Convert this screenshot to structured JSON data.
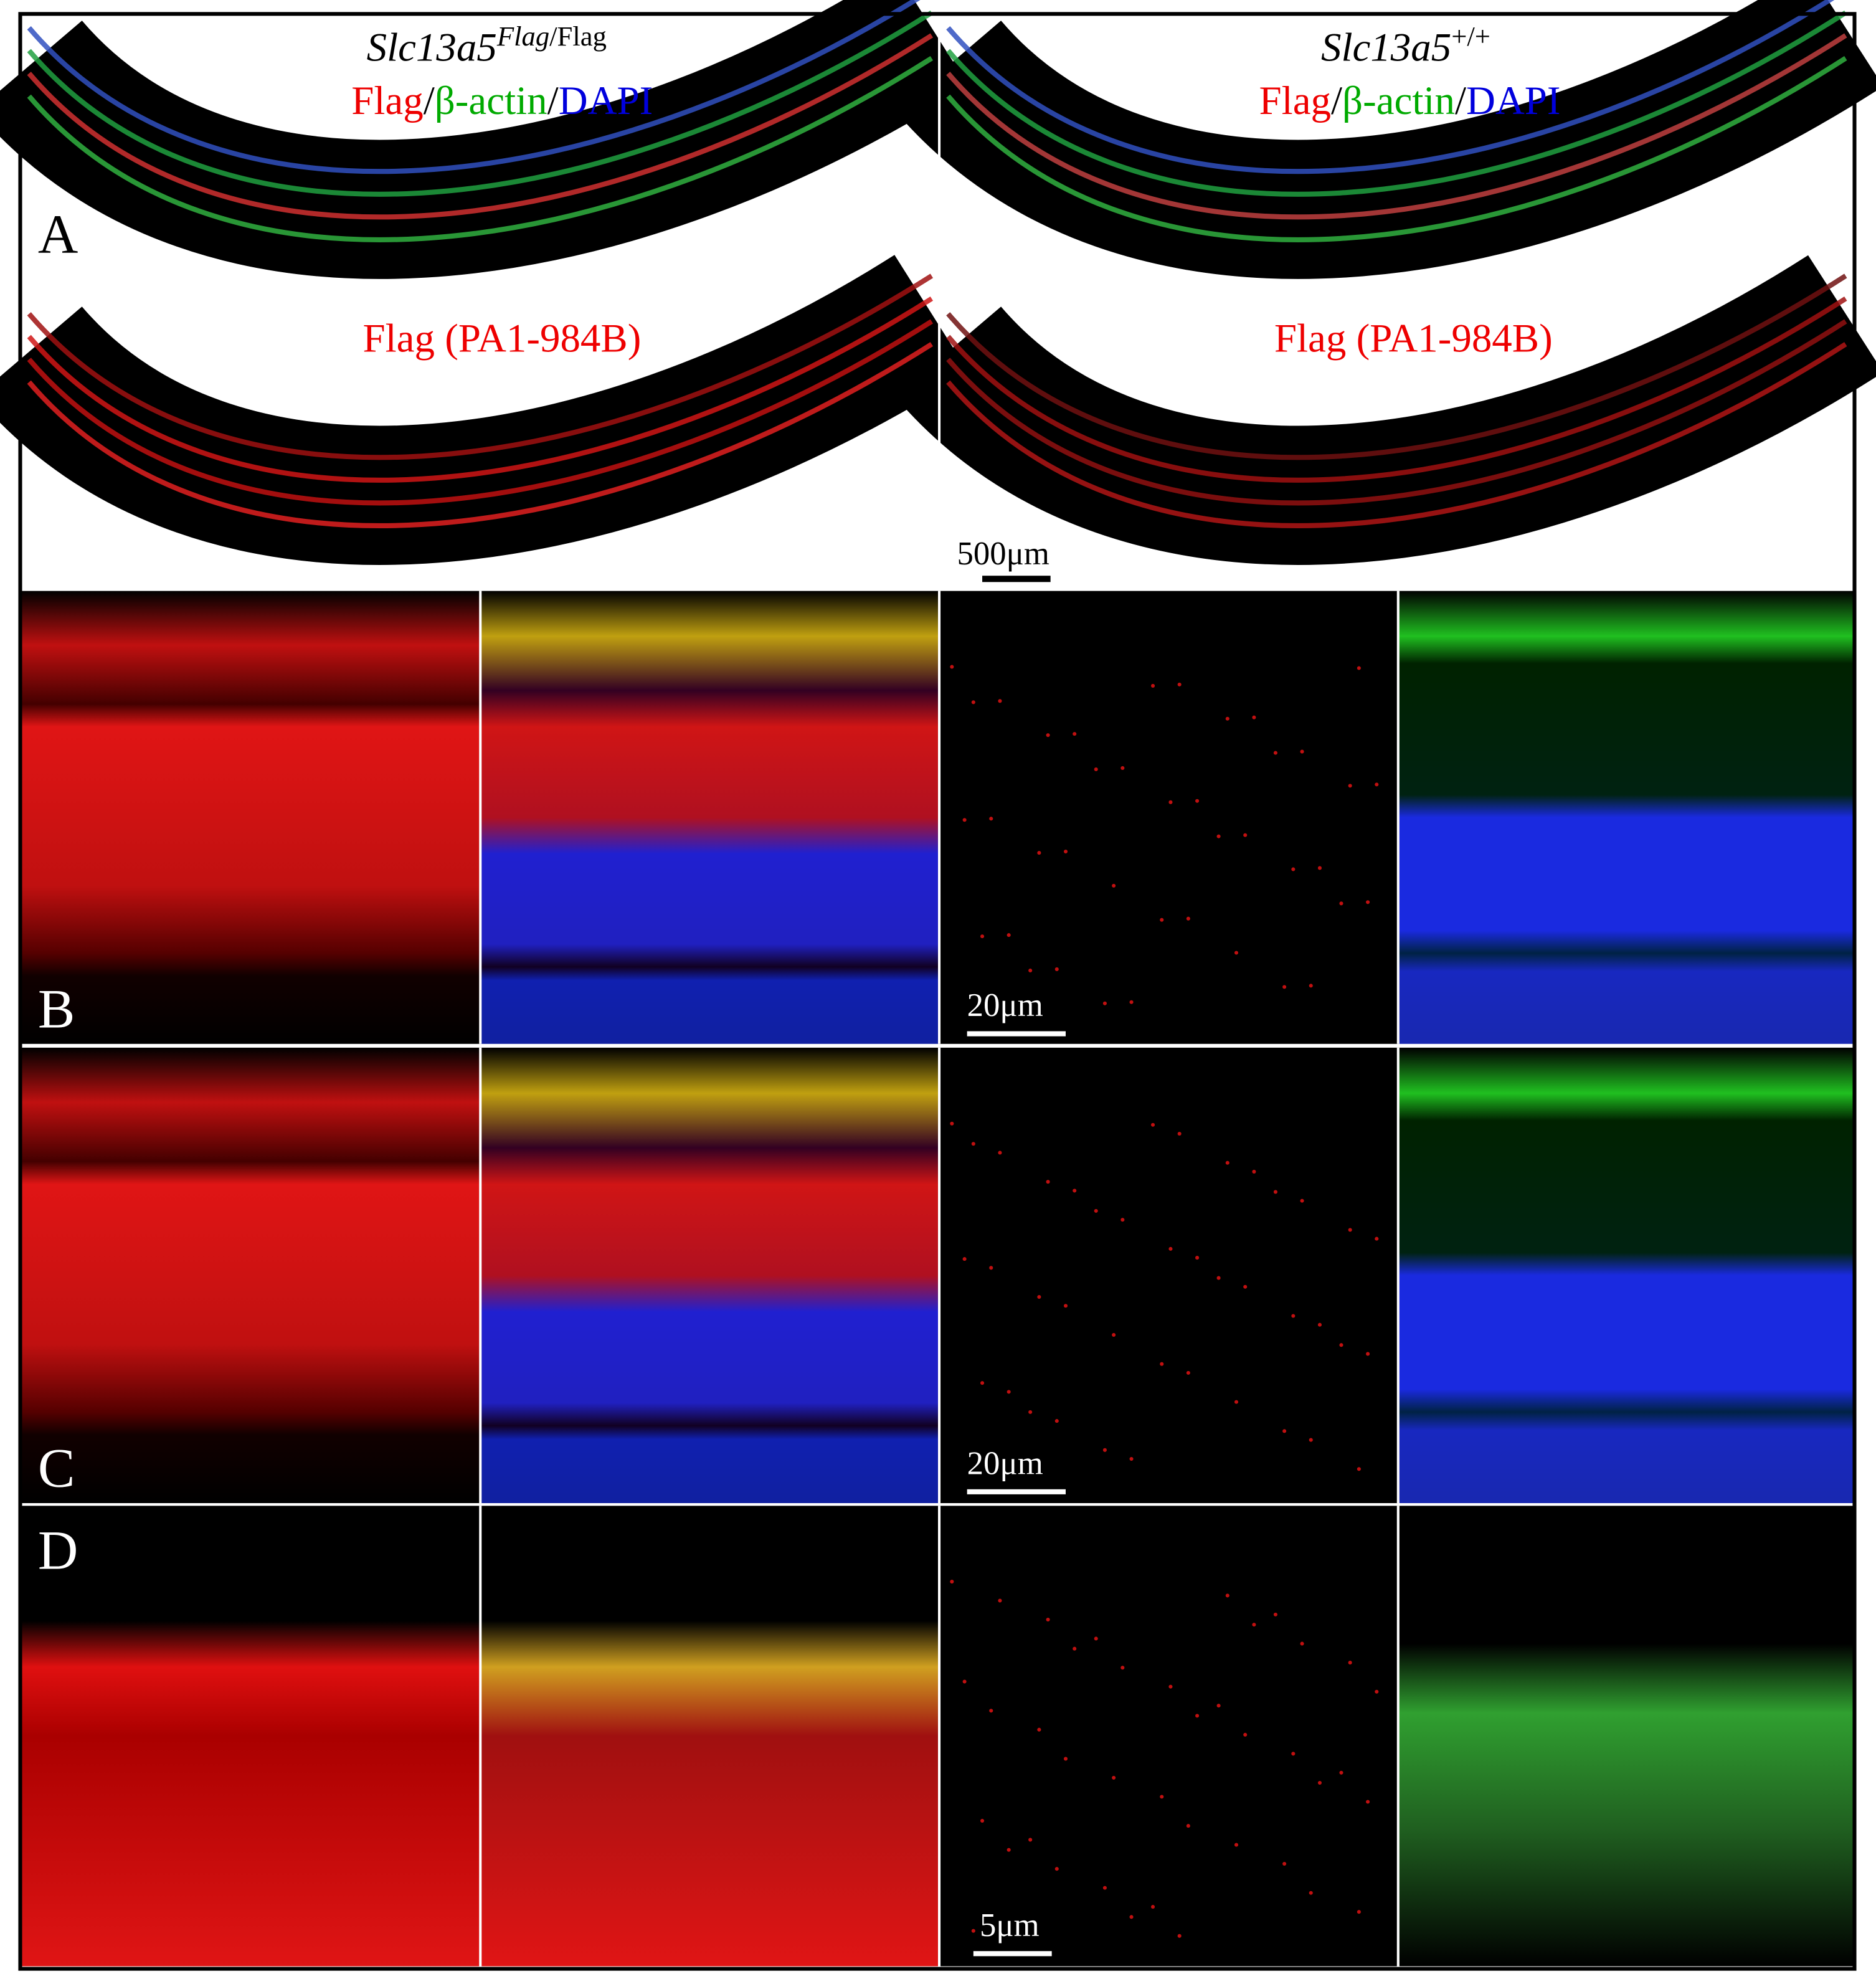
{
  "panel_a": {
    "label": "A",
    "left": {
      "gene": "Slc13a5",
      "sup_italic": "Flag",
      "sup_rest": "/Flag",
      "stain_flag": "Flag",
      "sep1": "/",
      "stain_actin": "β-actin",
      "sep2": "/",
      "stain_dapi": "DAPI",
      "lower_label": "Flag (PA1-984B)"
    },
    "right": {
      "gene": "Slc13a5",
      "sup": "+/+",
      "stain_flag": "Flag",
      "sep1": "/",
      "stain_actin": "β-actin",
      "sep2": "/",
      "stain_dapi": "DAPI",
      "lower_label": "Flag (PA1-984B)"
    },
    "scale_bar": "500μm"
  },
  "panel_b": {
    "label": "B",
    "scale_bar": "20μm"
  },
  "panel_c": {
    "label": "C",
    "scale_bar": "20μm"
  },
  "panel_d": {
    "label": "D",
    "scale_bar": "5μm"
  }
}
